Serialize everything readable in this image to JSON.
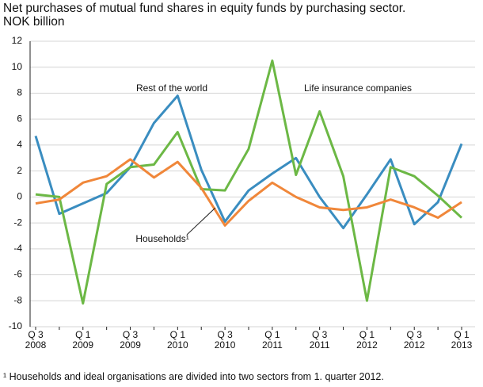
{
  "chart_data": {
    "type": "line",
    "title": "Net purchases of mutual fund shares in equity funds by purchasing sector.",
    "subtitle": "NOK billion",
    "footnote": "¹ Households and ideal organisations are divided into two sectors from 1. quarter 2012.",
    "categories": [
      "Q 3\n2008",
      null,
      "Q 1\n2009",
      null,
      "Q 3\n2009",
      null,
      "Q 1\n2010",
      null,
      "Q 3\n2010",
      null,
      "Q 1\n2011",
      null,
      "Q 3\n2011",
      null,
      "Q 1\n2012",
      null,
      "Q 3\n2012",
      null,
      "Q 1\n2013"
    ],
    "series": [
      {
        "name": "Rest of the world",
        "color": "#3a8dc0",
        "values": [
          4.7,
          -1.3,
          -0.5,
          0.3,
          2.3,
          5.7,
          7.8,
          2.1,
          -1.9,
          0.5,
          1.8,
          3.0,
          0.0,
          -2.4,
          0.2,
          2.9,
          -2.1,
          -0.4,
          4.1
        ]
      },
      {
        "name": "Life insurance companies",
        "color": "#6cb845",
        "values": [
          0.2,
          0.0,
          -8.2,
          1.0,
          2.3,
          2.5,
          5.0,
          0.6,
          0.5,
          3.7,
          10.5,
          1.7,
          6.6,
          1.6,
          -8.0,
          2.3,
          1.6,
          0.1,
          -1.6
        ]
      },
      {
        "name": "Households¹",
        "color": "#f0873a",
        "values": [
          -0.5,
          -0.2,
          1.1,
          1.6,
          2.9,
          1.5,
          2.7,
          0.7,
          -2.2,
          -0.3,
          1.1,
          0.0,
          -0.8,
          -1.0,
          -0.8,
          -0.2,
          -0.8,
          -1.6,
          -0.4
        ]
      }
    ],
    "ylim": [
      -10,
      12
    ],
    "yticks": [
      -10,
      -8,
      -6,
      -4,
      -2,
      0,
      2,
      4,
      6,
      8,
      10,
      12
    ],
    "grid": true
  }
}
